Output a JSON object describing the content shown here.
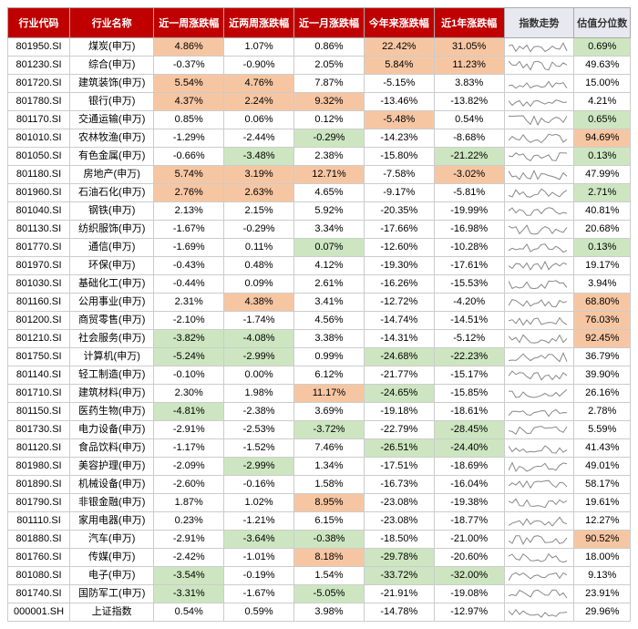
{
  "colors": {
    "header_bg": "#c00000",
    "header_fg": "#ffffff",
    "header_light_bg": "#e8e8f0",
    "highlight_pos": "#f6c6a3",
    "highlight_neg": "#cde6c1",
    "spark_stroke": "#888888",
    "border": "#cccccc"
  },
  "headers": {
    "code": "行业代码",
    "name": "行业名称",
    "w1": "近一周涨跌幅",
    "w2": "近两周涨跌幅",
    "m1": "近一月涨跌幅",
    "ytd": "今年来涨跌幅",
    "y1": "近1年涨跌幅",
    "spark": "指数走势",
    "val": "估值分位数"
  },
  "rows": [
    {
      "code": "801950.SI",
      "name": "煤炭(申万)",
      "w1": {
        "v": "4.86%",
        "h": "p"
      },
      "w2": {
        "v": "1.07%"
      },
      "m1": {
        "v": "0.86%"
      },
      "ytd": {
        "v": "22.42%",
        "h": "p"
      },
      "y1": {
        "v": "31.05%",
        "h": "p"
      },
      "val": {
        "v": "0.69%",
        "h": "n"
      }
    },
    {
      "code": "801230.SI",
      "name": "综合(申万)",
      "w1": {
        "v": "-0.37%"
      },
      "w2": {
        "v": "-0.90%"
      },
      "m1": {
        "v": "2.05%"
      },
      "ytd": {
        "v": "5.84%",
        "h": "p"
      },
      "y1": {
        "v": "11.23%",
        "h": "p"
      },
      "val": {
        "v": "49.63%"
      }
    },
    {
      "code": "801720.SI",
      "name": "建筑装饰(申万)",
      "w1": {
        "v": "5.54%",
        "h": "p"
      },
      "w2": {
        "v": "4.76%",
        "h": "p"
      },
      "m1": {
        "v": "7.87%"
      },
      "ytd": {
        "v": "-5.15%"
      },
      "y1": {
        "v": "3.83%"
      },
      "val": {
        "v": "15.00%"
      }
    },
    {
      "code": "801780.SI",
      "name": "银行(申万)",
      "w1": {
        "v": "4.37%",
        "h": "p"
      },
      "w2": {
        "v": "2.24%",
        "h": "p"
      },
      "m1": {
        "v": "9.32%",
        "h": "p"
      },
      "ytd": {
        "v": "-13.46%"
      },
      "y1": {
        "v": "-13.82%"
      },
      "val": {
        "v": "4.21%"
      }
    },
    {
      "code": "801170.SI",
      "name": "交通运输(申万)",
      "w1": {
        "v": "0.85%"
      },
      "w2": {
        "v": "0.06%"
      },
      "m1": {
        "v": "0.12%"
      },
      "ytd": {
        "v": "-5.48%",
        "h": "p"
      },
      "y1": {
        "v": "0.54%"
      },
      "val": {
        "v": "0.65%",
        "h": "n"
      }
    },
    {
      "code": "801010.SI",
      "name": "农林牧渔(申万)",
      "w1": {
        "v": "-1.29%"
      },
      "w2": {
        "v": "-2.44%"
      },
      "m1": {
        "v": "-0.29%",
        "h": "n"
      },
      "ytd": {
        "v": "-14.23%"
      },
      "y1": {
        "v": "-8.68%"
      },
      "val": {
        "v": "94.69%",
        "h": "p"
      }
    },
    {
      "code": "801050.SI",
      "name": "有色金属(申万)",
      "w1": {
        "v": "-0.66%"
      },
      "w2": {
        "v": "-3.48%",
        "h": "n"
      },
      "m1": {
        "v": "2.38%"
      },
      "ytd": {
        "v": "-15.80%"
      },
      "y1": {
        "v": "-21.22%",
        "h": "n"
      },
      "val": {
        "v": "0.13%",
        "h": "n"
      }
    },
    {
      "code": "801180.SI",
      "name": "房地产(申万)",
      "w1": {
        "v": "5.74%",
        "h": "p"
      },
      "w2": {
        "v": "3.19%",
        "h": "p"
      },
      "m1": {
        "v": "12.71%",
        "h": "p"
      },
      "ytd": {
        "v": "-7.58%"
      },
      "y1": {
        "v": "-3.02%",
        "h": "p"
      },
      "val": {
        "v": "47.99%"
      }
    },
    {
      "code": "801960.SI",
      "name": "石油石化(申万)",
      "w1": {
        "v": "2.76%",
        "h": "p"
      },
      "w2": {
        "v": "2.63%",
        "h": "p"
      },
      "m1": {
        "v": "4.65%"
      },
      "ytd": {
        "v": "-9.17%"
      },
      "y1": {
        "v": "-5.81%"
      },
      "val": {
        "v": "2.71%",
        "h": "n"
      }
    },
    {
      "code": "801040.SI",
      "name": "钢铁(申万)",
      "w1": {
        "v": "2.13%"
      },
      "w2": {
        "v": "2.15%"
      },
      "m1": {
        "v": "5.92%"
      },
      "ytd": {
        "v": "-20.35%"
      },
      "y1": {
        "v": "-19.99%"
      },
      "val": {
        "v": "40.81%"
      }
    },
    {
      "code": "801130.SI",
      "name": "纺织服饰(申万)",
      "w1": {
        "v": "-1.67%"
      },
      "w2": {
        "v": "-0.29%"
      },
      "m1": {
        "v": "3.34%"
      },
      "ytd": {
        "v": "-17.66%"
      },
      "y1": {
        "v": "-16.98%"
      },
      "val": {
        "v": "20.68%"
      }
    },
    {
      "code": "801770.SI",
      "name": "通信(申万)",
      "w1": {
        "v": "-1.69%"
      },
      "w2": {
        "v": "0.11%"
      },
      "m1": {
        "v": "0.07%",
        "h": "n"
      },
      "ytd": {
        "v": "-12.60%"
      },
      "y1": {
        "v": "-10.28%"
      },
      "val": {
        "v": "0.13%",
        "h": "n"
      }
    },
    {
      "code": "801970.SI",
      "name": "环保(申万)",
      "w1": {
        "v": "-0.43%"
      },
      "w2": {
        "v": "0.48%"
      },
      "m1": {
        "v": "4.12%"
      },
      "ytd": {
        "v": "-19.30%"
      },
      "y1": {
        "v": "-17.61%"
      },
      "val": {
        "v": "19.17%"
      }
    },
    {
      "code": "801030.SI",
      "name": "基础化工(申万)",
      "w1": {
        "v": "-0.44%"
      },
      "w2": {
        "v": "0.09%"
      },
      "m1": {
        "v": "2.61%"
      },
      "ytd": {
        "v": "-16.26%"
      },
      "y1": {
        "v": "-15.53%"
      },
      "val": {
        "v": "3.94%"
      }
    },
    {
      "code": "801160.SI",
      "name": "公用事业(申万)",
      "w1": {
        "v": "2.31%"
      },
      "w2": {
        "v": "4.38%",
        "h": "p"
      },
      "m1": {
        "v": "3.41%"
      },
      "ytd": {
        "v": "-12.72%"
      },
      "y1": {
        "v": "-4.20%"
      },
      "val": {
        "v": "68.80%",
        "h": "p"
      }
    },
    {
      "code": "801200.SI",
      "name": "商贸零售(申万)",
      "w1": {
        "v": "-2.10%"
      },
      "w2": {
        "v": "-1.74%"
      },
      "m1": {
        "v": "4.56%"
      },
      "ytd": {
        "v": "-14.74%"
      },
      "y1": {
        "v": "-14.51%"
      },
      "val": {
        "v": "76.03%",
        "h": "p"
      }
    },
    {
      "code": "801210.SI",
      "name": "社会服务(申万)",
      "w1": {
        "v": "-3.82%",
        "h": "n"
      },
      "w2": {
        "v": "-4.08%",
        "h": "n"
      },
      "m1": {
        "v": "3.38%"
      },
      "ytd": {
        "v": "-14.31%"
      },
      "y1": {
        "v": "-5.12%"
      },
      "val": {
        "v": "92.45%",
        "h": "p"
      }
    },
    {
      "code": "801750.SI",
      "name": "计算机(申万)",
      "w1": {
        "v": "-5.24%",
        "h": "n"
      },
      "w2": {
        "v": "-2.99%",
        "h": "n"
      },
      "m1": {
        "v": "0.99%"
      },
      "ytd": {
        "v": "-24.68%",
        "h": "n"
      },
      "y1": {
        "v": "-22.23%",
        "h": "n"
      },
      "val": {
        "v": "36.79%"
      }
    },
    {
      "code": "801140.SI",
      "name": "轻工制造(申万)",
      "w1": {
        "v": "-0.10%"
      },
      "w2": {
        "v": "0.00%"
      },
      "m1": {
        "v": "6.12%"
      },
      "ytd": {
        "v": "-21.77%"
      },
      "y1": {
        "v": "-15.17%"
      },
      "val": {
        "v": "39.90%"
      }
    },
    {
      "code": "801710.SI",
      "name": "建筑材料(申万)",
      "w1": {
        "v": "2.30%"
      },
      "w2": {
        "v": "1.98%"
      },
      "m1": {
        "v": "11.17%",
        "h": "p"
      },
      "ytd": {
        "v": "-24.65%",
        "h": "n"
      },
      "y1": {
        "v": "-15.85%"
      },
      "val": {
        "v": "26.16%"
      }
    },
    {
      "code": "801150.SI",
      "name": "医药生物(申万)",
      "w1": {
        "v": "-4.81%",
        "h": "n"
      },
      "w2": {
        "v": "-2.38%"
      },
      "m1": {
        "v": "3.69%"
      },
      "ytd": {
        "v": "-19.18%"
      },
      "y1": {
        "v": "-18.61%"
      },
      "val": {
        "v": "2.78%"
      }
    },
    {
      "code": "801730.SI",
      "name": "电力设备(申万)",
      "w1": {
        "v": "-2.91%"
      },
      "w2": {
        "v": "-2.53%"
      },
      "m1": {
        "v": "-3.72%",
        "h": "n"
      },
      "ytd": {
        "v": "-22.79%"
      },
      "y1": {
        "v": "-28.45%",
        "h": "n"
      },
      "val": {
        "v": "5.59%"
      }
    },
    {
      "code": "801120.SI",
      "name": "食品饮料(申万)",
      "w1": {
        "v": "-1.17%"
      },
      "w2": {
        "v": "-1.52%"
      },
      "m1": {
        "v": "7.46%"
      },
      "ytd": {
        "v": "-26.51%",
        "h": "n"
      },
      "y1": {
        "v": "-24.40%",
        "h": "n"
      },
      "val": {
        "v": "41.43%"
      }
    },
    {
      "code": "801980.SI",
      "name": "美容护理(申万)",
      "w1": {
        "v": "-2.09%"
      },
      "w2": {
        "v": "-2.99%",
        "h": "n"
      },
      "m1": {
        "v": "1.34%"
      },
      "ytd": {
        "v": "-17.51%"
      },
      "y1": {
        "v": "-18.69%"
      },
      "val": {
        "v": "49.01%"
      }
    },
    {
      "code": "801890.SI",
      "name": "机械设备(申万)",
      "w1": {
        "v": "-2.60%"
      },
      "w2": {
        "v": "-0.16%"
      },
      "m1": {
        "v": "1.58%"
      },
      "ytd": {
        "v": "-16.73%"
      },
      "y1": {
        "v": "-16.04%"
      },
      "val": {
        "v": "58.17%"
      }
    },
    {
      "code": "801790.SI",
      "name": "非银金融(申万)",
      "w1": {
        "v": "1.87%"
      },
      "w2": {
        "v": "1.02%"
      },
      "m1": {
        "v": "8.95%",
        "h": "p"
      },
      "ytd": {
        "v": "-23.08%"
      },
      "y1": {
        "v": "-19.38%"
      },
      "val": {
        "v": "19.61%"
      }
    },
    {
      "code": "801110.SI",
      "name": "家用电器(申万)",
      "w1": {
        "v": "0.23%"
      },
      "w2": {
        "v": "-1.21%"
      },
      "m1": {
        "v": "6.15%"
      },
      "ytd": {
        "v": "-23.08%"
      },
      "y1": {
        "v": "-18.77%"
      },
      "val": {
        "v": "12.27%"
      }
    },
    {
      "code": "801880.SI",
      "name": "汽车(申万)",
      "w1": {
        "v": "-2.91%"
      },
      "w2": {
        "v": "-3.64%",
        "h": "n"
      },
      "m1": {
        "v": "-0.38%",
        "h": "n"
      },
      "ytd": {
        "v": "-18.50%"
      },
      "y1": {
        "v": "-21.00%"
      },
      "val": {
        "v": "90.52%",
        "h": "p"
      }
    },
    {
      "code": "801760.SI",
      "name": "传媒(申万)",
      "w1": {
        "v": "-2.42%"
      },
      "w2": {
        "v": "-1.01%"
      },
      "m1": {
        "v": "8.18%",
        "h": "p"
      },
      "ytd": {
        "v": "-29.78%",
        "h": "n"
      },
      "y1": {
        "v": "-20.60%"
      },
      "val": {
        "v": "18.00%"
      }
    },
    {
      "code": "801080.SI",
      "name": "电子(申万)",
      "w1": {
        "v": "-3.54%",
        "h": "n"
      },
      "w2": {
        "v": "-0.19%"
      },
      "m1": {
        "v": "1.54%"
      },
      "ytd": {
        "v": "-33.72%",
        "h": "n"
      },
      "y1": {
        "v": "-32.00%",
        "h": "n"
      },
      "val": {
        "v": "9.13%"
      }
    },
    {
      "code": "801740.SI",
      "name": "国防军工(申万)",
      "w1": {
        "v": "-3.31%",
        "h": "n"
      },
      "w2": {
        "v": "-1.67%"
      },
      "m1": {
        "v": "-5.05%",
        "h": "n"
      },
      "ytd": {
        "v": "-21.91%"
      },
      "y1": {
        "v": "-19.08%"
      },
      "val": {
        "v": "23.91%"
      }
    },
    {
      "code": "000001.SH",
      "name": "上证指数",
      "w1": {
        "v": "0.54%"
      },
      "w2": {
        "v": "0.59%"
      },
      "m1": {
        "v": "3.98%"
      },
      "ytd": {
        "v": "-14.78%"
      },
      "y1": {
        "v": "-12.97%"
      },
      "val": {
        "v": "29.96%"
      }
    }
  ]
}
